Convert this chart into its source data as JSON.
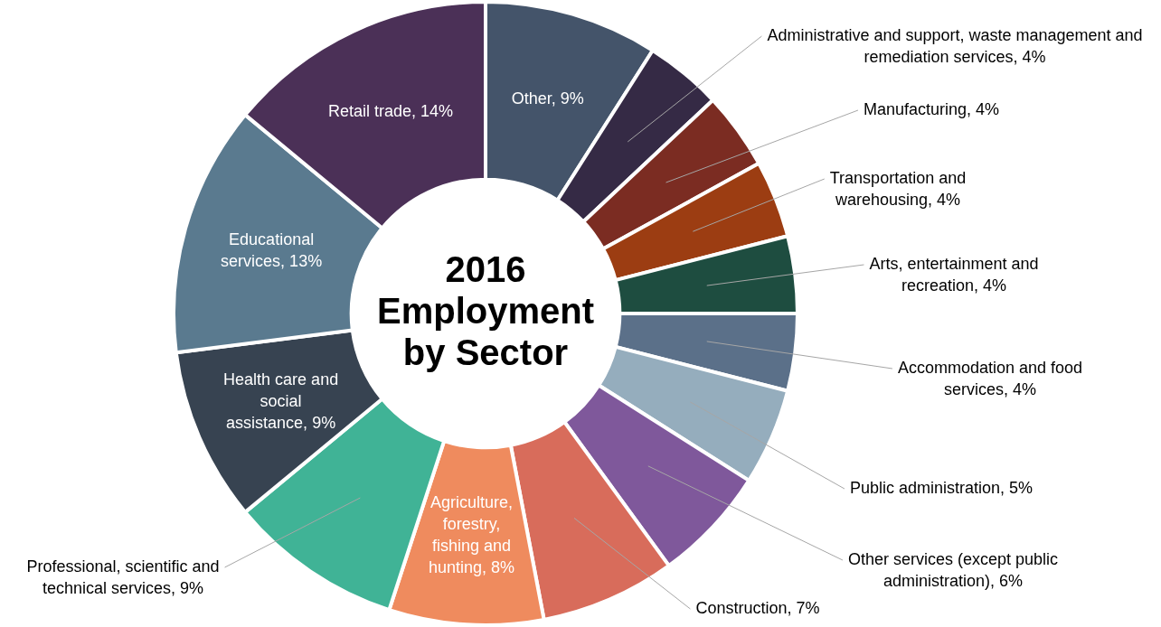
{
  "chart_data": {
    "type": "donut",
    "title": "2016 Employment by Sector",
    "categories": [
      "Other",
      "Administrative and support, waste management and remediation services",
      "Manufacturing",
      "Transportation and warehousing",
      "Arts, entertainment and recreation",
      "Accommodation and food services",
      "Public administration",
      "Other services (except public administration)",
      "Construction",
      "Agriculture, forestry, fishing and hunting",
      "Professional, scientific and technical services",
      "Health care and social assistance",
      "Educational services",
      "Retail trade"
    ],
    "values": [
      9,
      4,
      4,
      4,
      4,
      4,
      5,
      6,
      7,
      8,
      9,
      9,
      13,
      14
    ],
    "colors": [
      "#44546a",
      "#352a45",
      "#7b2c22",
      "#9c3d12",
      "#1e4d40",
      "#5b7089",
      "#95adbd",
      "#7f589b",
      "#d86c5b",
      "#ef8b5e",
      "#40b396",
      "#374351",
      "#5a7a8f",
      "#4b3057"
    ],
    "value_labels": [
      "9%",
      "4%",
      "4%",
      "4%",
      "4%",
      "4%",
      "5%",
      "6%",
      "7%",
      "8%",
      "9%",
      "9%",
      "13%",
      "14%"
    ],
    "legend": false
  }
}
